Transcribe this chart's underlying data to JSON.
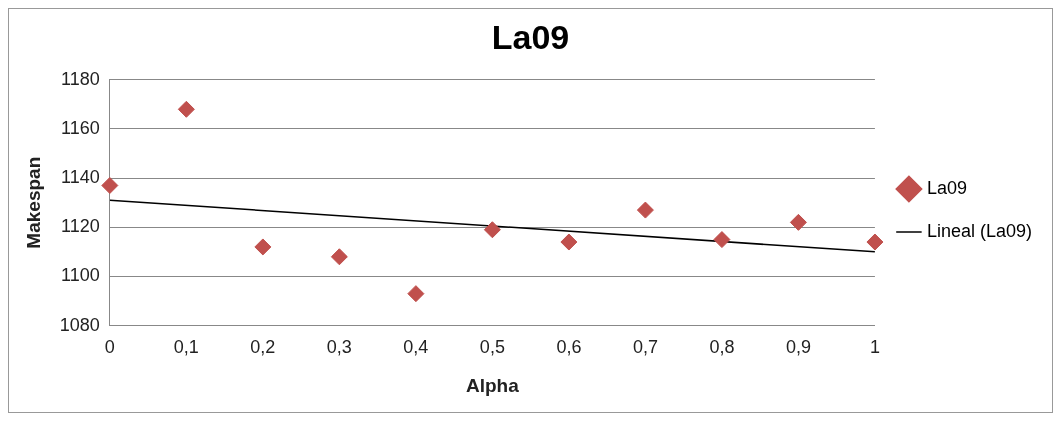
{
  "chart_data": {
    "type": "scatter",
    "title": "La09",
    "xlabel": "Alpha",
    "ylabel": "Makespan",
    "x": [
      0,
      0.1,
      0.2,
      0.3,
      0.4,
      0.5,
      0.6,
      0.7,
      0.8,
      0.9,
      1
    ],
    "series": [
      {
        "name": "La09",
        "type": "scatter",
        "color": "#c0504d",
        "marker": "diamond",
        "values": [
          1137,
          1168,
          1112,
          1108,
          1093,
          1119,
          1114,
          1127,
          1115,
          1122,
          1114
        ]
      },
      {
        "name": "Lineal (La09)",
        "type": "line",
        "color": "#000000",
        "x": [
          0,
          1
        ],
        "values": [
          1131,
          1110
        ],
        "marker": "none"
      }
    ],
    "xlim": [
      0,
      1
    ],
    "xticks": [
      0,
      {
        "value": 0.1,
        "label": "0,1"
      },
      {
        "value": 0.2,
        "label": "0,2"
      },
      {
        "value": 0.3,
        "label": "0,3"
      },
      {
        "value": 0.4,
        "label": "0,4"
      },
      {
        "value": 0.5,
        "label": "0,5"
      },
      {
        "value": 0.6,
        "label": "0,6"
      },
      {
        "value": 0.7,
        "label": "0,7"
      },
      {
        "value": 0.8,
        "label": "0,8"
      },
      {
        "value": 0.9,
        "label": "0,9"
      },
      1
    ],
    "ylim": [
      1080,
      1180
    ],
    "yticks": [
      1080,
      1100,
      1120,
      1140,
      1160,
      1180
    ],
    "grid": "y",
    "legend": "right"
  }
}
